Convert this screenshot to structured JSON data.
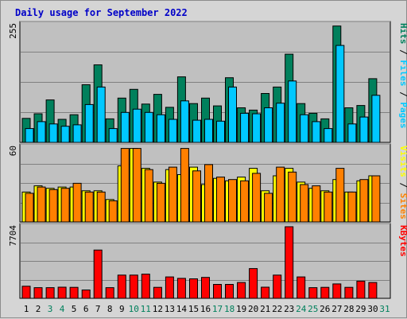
{
  "chart_data": {
    "type": "bar",
    "title": "Daily usage for September 2022",
    "colors": {
      "hits": "#00805c",
      "files": "#00c8ff",
      "pages": "#00c8ff",
      "sites": "#ff8000",
      "visits": "#ffff00",
      "kbytes": "#ff0000",
      "weekday_label": "#000000",
      "weekend_label": "#00805c",
      "slash": "#000000"
    },
    "x": [
      "1",
      "2",
      "3",
      "4",
      "5",
      "6",
      "7",
      "8",
      "9",
      "10",
      "11",
      "12",
      "13",
      "14",
      "15",
      "16",
      "17",
      "18",
      "19",
      "20",
      "21",
      "22",
      "23",
      "24",
      "25",
      "26",
      "27",
      "28",
      "29",
      "30",
      "31"
    ],
    "weekend_days": [
      "3",
      "4",
      "10",
      "11",
      "17",
      "18",
      "24",
      "25",
      "31"
    ],
    "panels": [
      {
        "id": "hits-files",
        "ymax_label": "255",
        "ymax": 255,
        "legend": [
          {
            "text": "Hits",
            "color_key": "hits"
          },
          {
            "text": "Files",
            "color_key": "files"
          },
          {
            "text": "Pages",
            "color_key": "pages"
          }
        ],
        "series": [
          {
            "name": "Hits",
            "color_key": "hits",
            "values": [
              52,
              62,
              92,
              50,
              60,
              125,
              168,
              51,
              96,
              115,
              83,
              104,
              76,
              142,
              84,
              96,
              79,
              140,
              75,
              70,
              106,
              120,
              191,
              84,
              63,
              51,
              252,
              75,
              80,
              138,
              null
            ]
          },
          {
            "name": "Files",
            "color_key": "files",
            "values": [
              30,
              45,
              40,
              35,
              38,
              82,
              120,
              30,
              65,
              72,
              65,
              60,
              50,
              90,
              48,
              50,
              46,
              120,
              63,
              62,
              75,
              85,
              133,
              60,
              45,
              30,
              210,
              40,
              55,
              102,
              null
            ]
          }
        ]
      },
      {
        "id": "sites-visits",
        "ymax_label": "60",
        "ymax": 60,
        "legend": [
          {
            "text": "Visits",
            "color_key": "visits"
          },
          {
            "text": "Sites",
            "color_key": "sites"
          }
        ],
        "series": [
          {
            "name": "Visits",
            "color_key": "visits",
            "values": [
              24,
              29,
              27,
              28,
              28,
              25,
              25,
              18,
              45,
              59,
              43,
              32,
              42,
              38,
              44,
              30,
              35,
              33,
              36,
              43,
              25,
              37,
              43,
              32,
              27,
              25,
              34,
              24,
              33,
              37,
              null
            ]
          },
          {
            "name": "Sites",
            "color_key": "sites",
            "values": [
              23,
              28,
              26,
              27,
              31,
              24,
              24,
              17,
              59,
              59,
              42,
              31,
              44,
              59,
              41,
              46,
              36,
              34,
              33,
              39,
              23,
              44,
              40,
              30,
              29,
              24,
              43,
              24,
              34,
              37,
              null
            ]
          }
        ]
      },
      {
        "id": "kbytes",
        "ymax_label": "7704",
        "ymax": 7704,
        "legend": [
          {
            "text": "KBytes",
            "color_key": "kbytes"
          }
        ],
        "series": [
          {
            "name": "KBytes",
            "color_key": "kbytes",
            "values": [
              1300,
              1150,
              1150,
              1200,
              1180,
              900,
              5200,
              1150,
              2500,
              2500,
              2600,
              1180,
              2300,
              2150,
              2100,
              2250,
              1500,
              1500,
              1700,
              3200,
              1200,
              2500,
              7704,
              2300,
              1150,
              1180,
              1550,
              1180,
              1850,
              1700,
              null
            ]
          }
        ]
      }
    ]
  }
}
